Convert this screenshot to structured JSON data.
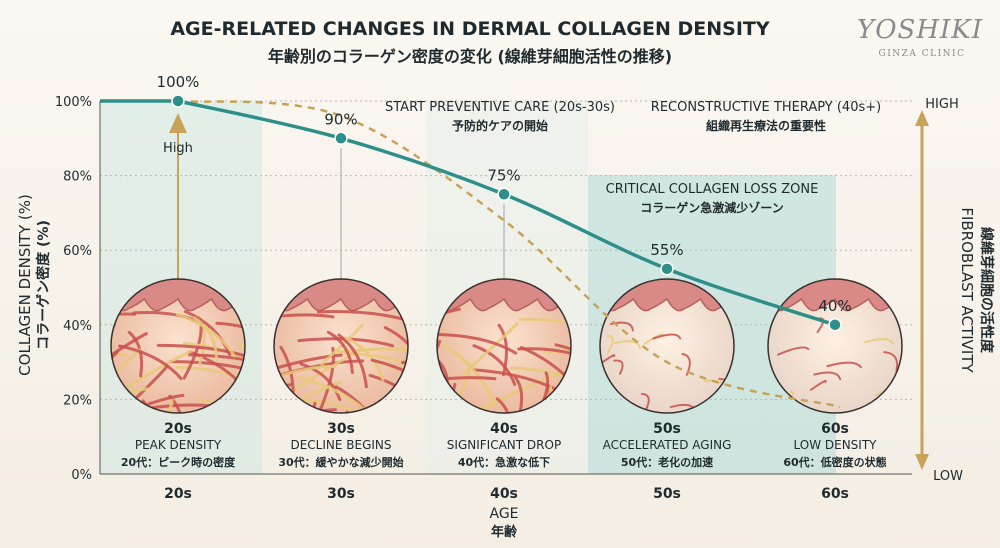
{
  "title": "AGE-RELATED CHANGES IN DERMAL COLLAGEN DENSITY",
  "subtitle": "年齢別のコラーゲン密度の変化 (線維芽細胞活性の推移)",
  "brand": {
    "name": "YOSHIKI",
    "tagline": "GINZA CLINIC"
  },
  "colors": {
    "collagen_line": "#2e8f8a",
    "fibroblast_line": "#c9a25a",
    "zone_fill": "#bfe0dc",
    "background": "#f7f3ec"
  },
  "chart_data": {
    "type": "line",
    "categories": [
      "20s",
      "30s",
      "40s",
      "50s",
      "60s"
    ],
    "ylabel": "COLLAGEN DENSITY (%)",
    "ylabel_ja": "コラーゲン密度 (%)",
    "xlabel": "AGE",
    "xlabel_ja": "年齢",
    "ylim": [
      0,
      100
    ],
    "yticks": [
      "0%",
      "20%",
      "40%",
      "60%",
      "80%",
      "100%"
    ],
    "yticks_values": [
      0,
      20,
      40,
      60,
      80,
      100
    ],
    "series": [
      {
        "values": [
          100,
          90,
          75,
          55,
          40
        ],
        "labels": [
          "100%",
          "90%",
          "75%",
          "55%",
          "40%"
        ]
      }
    ],
    "secondary_curve": [
      100,
      96,
      68,
      30,
      18
    ],
    "right_axis": {
      "label": "FIBROBLAST ACTIVITY",
      "label_ja": "線維芽細胞の活性度",
      "high": "HIGH",
      "low": "LOW"
    },
    "high_marker": "High"
  },
  "annotations": {
    "preventive": {
      "en": "START PREVENTIVE CARE (20s-30s)",
      "ja": "予防的ケアの開始"
    },
    "reconstructive": {
      "en": "RECONSTRUCTIVE THERAPY (40s+)",
      "ja": "組織再生療法の重要性"
    },
    "critical_zone": {
      "en": "CRITICAL COLLAGEN LOSS ZONE",
      "ja": "コラーゲン急激減少ゾーン"
    }
  },
  "stages": [
    {
      "age": "20s",
      "en": "PEAK DENSITY",
      "ja": "20代：ピーク時の密度"
    },
    {
      "age": "30s",
      "en": "DECLINE BEGINS",
      "ja": "30代：緩やかな減少開始"
    },
    {
      "age": "40s",
      "en": "SIGNIFICANT DROP",
      "ja": "40代：急激な低下"
    },
    {
      "age": "50s",
      "en": "ACCELERATED AGING",
      "ja": "50代：老化の加速"
    },
    {
      "age": "60s",
      "en": "LOW DENSITY",
      "ja": "60代：低密度の状態"
    }
  ]
}
